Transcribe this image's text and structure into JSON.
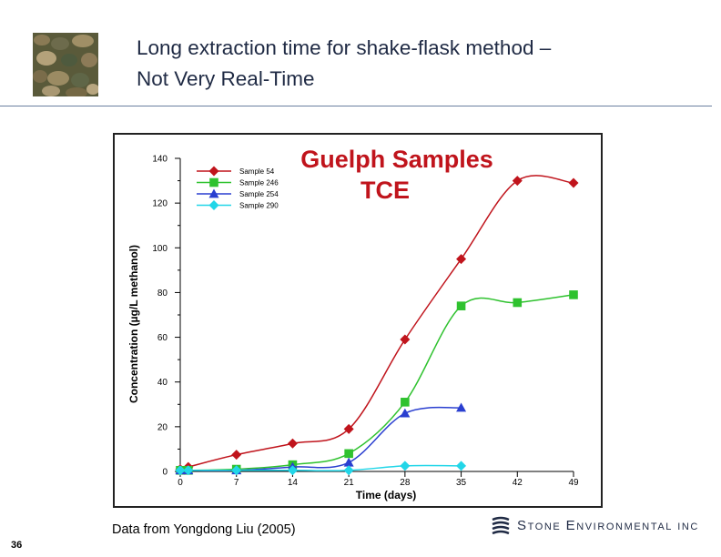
{
  "slide": {
    "title_line1": "Long extraction time for shake-flask method  –",
    "title_line2": "Not Very Real-Time",
    "source_note": "Data from Yongdong Liu (2005)",
    "slide_number": "36",
    "company": "Stone Environmental Inc",
    "thumbnail_icon": "river-pebbles-photo"
  },
  "chart_data": {
    "type": "line",
    "title": "Guelph Samples",
    "subtitle": "TCE",
    "xlabel": "Time (days)",
    "ylabel": "Concentration (µg/L methanol)",
    "xlim": [
      0,
      49
    ],
    "ylim": [
      0,
      140
    ],
    "xticks": [
      0,
      7,
      14,
      21,
      28,
      35,
      42,
      49
    ],
    "yticks": [
      0,
      20,
      40,
      60,
      80,
      100,
      120,
      140
    ],
    "grid": false,
    "legend_position": "top-left",
    "series": [
      {
        "name": "Sample 54",
        "color": "#c0141c",
        "marker": "diamond",
        "x": [
          0,
          1,
          7,
          14,
          21,
          28,
          35,
          42,
          49
        ],
        "y": [
          1,
          2,
          7.5,
          12.5,
          19,
          59,
          95,
          130,
          129
        ]
      },
      {
        "name": "Sample 246",
        "color": "#2fc22f",
        "marker": "square",
        "x": [
          0,
          1,
          7,
          14,
          21,
          28,
          35,
          42,
          49
        ],
        "y": [
          0.5,
          0.5,
          1,
          3,
          8,
          31,
          74,
          75.5,
          79
        ]
      },
      {
        "name": "Sample 254",
        "color": "#2a3fd0",
        "marker": "triangle",
        "x": [
          0,
          1,
          7,
          14,
          21,
          28,
          35
        ],
        "y": [
          0.5,
          0.5,
          0.5,
          2,
          4,
          26,
          28.5
        ]
      },
      {
        "name": "Sample 290",
        "color": "#22d6e8",
        "marker": "diamond",
        "x": [
          0,
          1,
          7,
          14,
          21,
          28,
          35
        ],
        "y": [
          0.5,
          0.5,
          0.5,
          0.5,
          0.5,
          2.5,
          2.5
        ]
      }
    ]
  }
}
